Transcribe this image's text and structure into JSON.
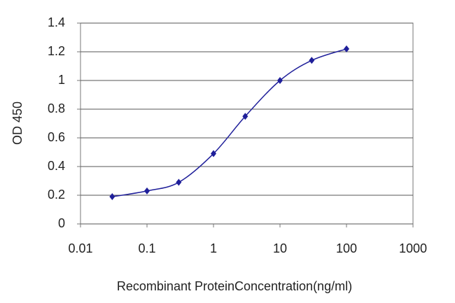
{
  "chart_data": {
    "type": "line",
    "x_label": "Recombinant ProteinConcentration(ng/ml)",
    "y_label": "OD 450",
    "x": [
      0.03,
      0.1,
      0.3,
      1,
      3,
      10,
      30,
      100
    ],
    "values": [
      0.19,
      0.23,
      0.29,
      0.49,
      0.75,
      1.0,
      1.14,
      1.22
    ],
    "color": "#1f1f9a",
    "xscale": "log",
    "xlim": [
      0.01,
      1000
    ],
    "xticks": [
      0.01,
      0.1,
      1,
      10,
      100,
      1000
    ],
    "ylim": [
      0,
      1.4
    ],
    "yticks": [
      0,
      0.2,
      0.4,
      0.6,
      0.8,
      1,
      1.2,
      1.4
    ],
    "grid": true
  }
}
